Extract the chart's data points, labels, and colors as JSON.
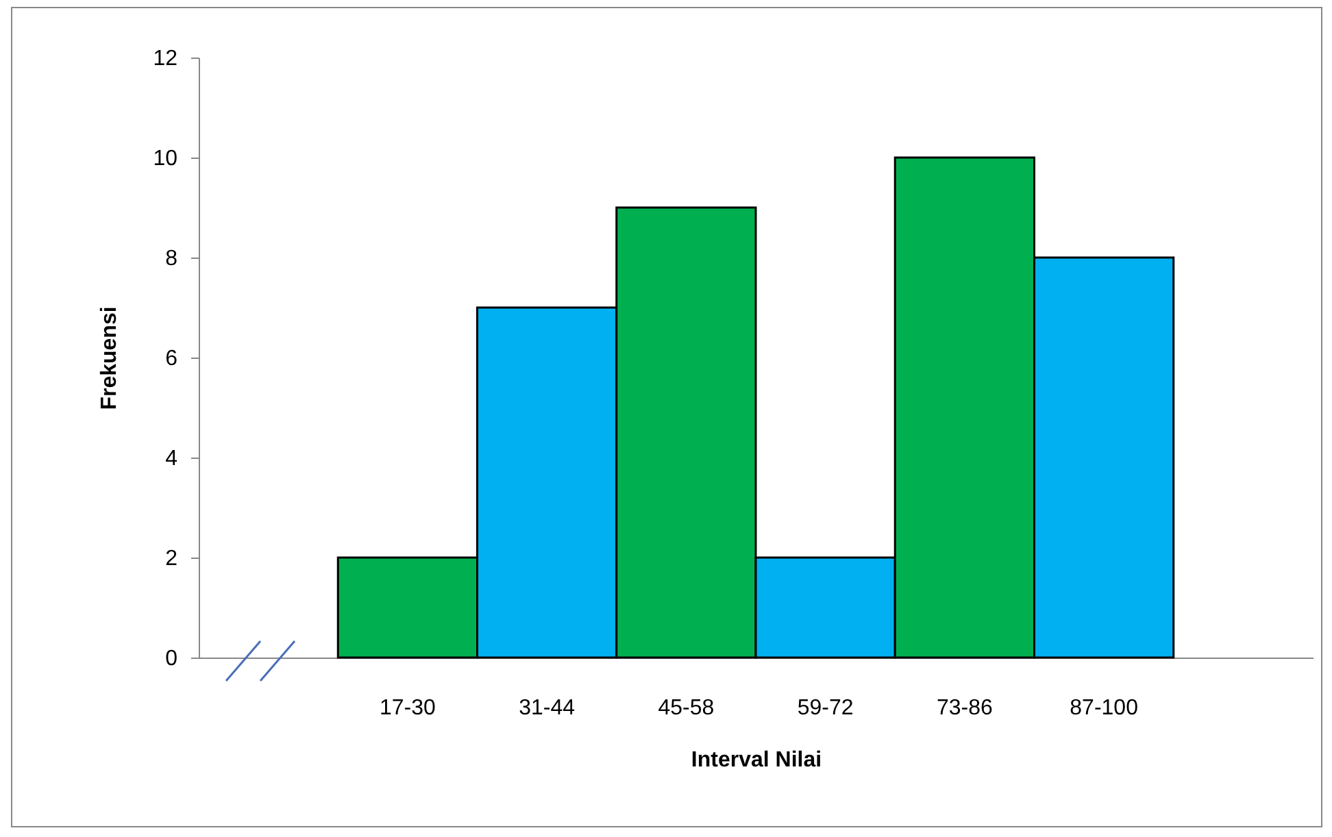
{
  "chart_data": {
    "type": "bar",
    "xlabel": "Interval Nilai",
    "ylabel": "Frekuensi",
    "categories": [
      null,
      "17-30",
      "31-44",
      "45-58",
      "59-72",
      "73-86",
      "87-100",
      null
    ],
    "values": [
      null,
      2,
      7,
      9,
      2,
      10,
      8,
      null
    ],
    "colors": [
      null,
      "#00b050",
      "#00b0f0",
      "#00b050",
      "#00b0f0",
      "#00b050",
      "#00b0f0",
      null
    ],
    "ylim": [
      0,
      12
    ],
    "yticks": [
      0,
      2,
      4,
      6,
      8,
      10,
      12
    ],
    "grid": false
  }
}
